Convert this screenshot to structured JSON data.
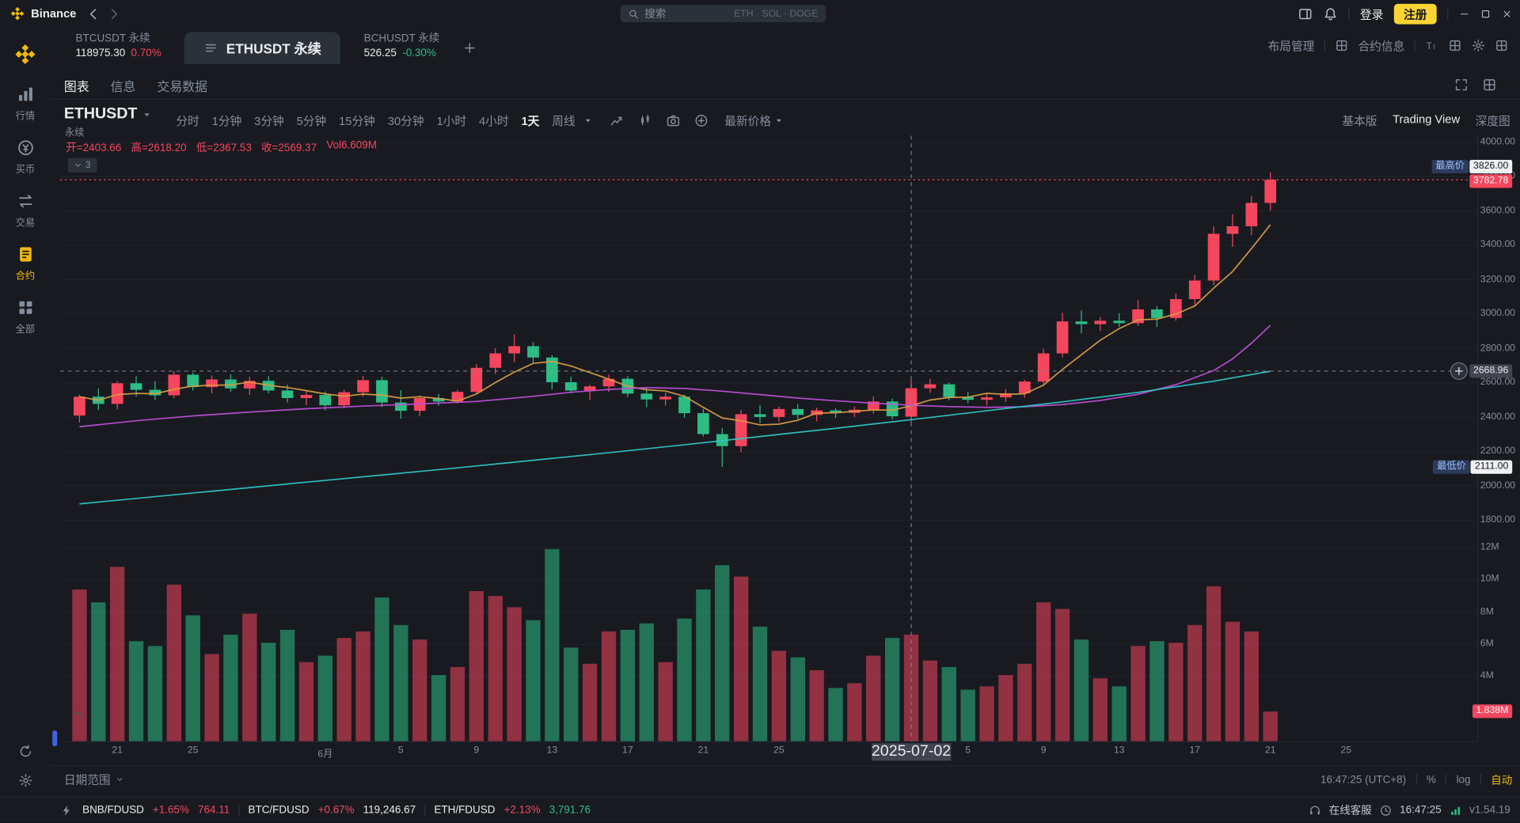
{
  "app": {
    "name": "Binance"
  },
  "titlebar": {
    "search_placeholder": "搜索",
    "search_hot": "ETH · SOL · DOGE",
    "login": "登录",
    "register": "注册"
  },
  "sidebar": {
    "items": [
      {
        "id": "markets",
        "label": "行情"
      },
      {
        "id": "buy",
        "label": "买币"
      },
      {
        "id": "trade",
        "label": "交易"
      },
      {
        "id": "futures",
        "label": "合约",
        "active": true
      },
      {
        "id": "all",
        "label": "全部"
      }
    ]
  },
  "tabstrip": {
    "tabs": [
      {
        "symbol": "BTCUSDT 永续",
        "price": "118975.30",
        "change": "0.70%",
        "change_dir": "up"
      },
      {
        "symbol": "ETHUSDT 永续",
        "active": true
      },
      {
        "symbol": "BCHUSDT 永续",
        "price": "526.25",
        "change": "-0.30%",
        "change_dir": "down"
      }
    ],
    "layout_manage": "布局管理",
    "contract_info": "合约信息"
  },
  "chart_header": {
    "tabs": [
      {
        "label": "图表",
        "active": true
      },
      {
        "label": "信息"
      },
      {
        "label": "交易数据"
      }
    ],
    "symbol": "ETHUSDT",
    "symbol_sub": "永续",
    "timeframes": [
      {
        "label": "分时"
      },
      {
        "label": "1分钟"
      },
      {
        "label": "3分钟"
      },
      {
        "label": "5分钟"
      },
      {
        "label": "15分钟"
      },
      {
        "label": "30分钟"
      },
      {
        "label": "1小时"
      },
      {
        "label": "4小时"
      },
      {
        "label": "1天",
        "active": true
      },
      {
        "label": "周线"
      }
    ],
    "price_mode": "最新价格",
    "view_modes": [
      {
        "label": "基本版"
      },
      {
        "label": "Trading View",
        "active": true
      },
      {
        "label": "深度图"
      }
    ],
    "ohlc": [
      {
        "k": "开",
        "v": "2403.66"
      },
      {
        "k": "高",
        "v": "2618.20"
      },
      {
        "k": "低",
        "v": "2367.53"
      },
      {
        "k": "收",
        "v": "2569.37"
      },
      {
        "k": "Vol",
        "v": "6.609M",
        "eq": false
      }
    ],
    "indicators_badge": "3"
  },
  "chart_data": {
    "type": "candlestick",
    "symbol": "ETHUSDT 永续",
    "interval": "1天",
    "up_color": "#f6465d",
    "down_color": "#2ebd85",
    "price_axis": {
      "max": 4000,
      "min": 1800,
      "ticks": [
        4000,
        3800,
        3600,
        3400,
        3200,
        3000,
        2800,
        2600,
        2400,
        2200,
        2000,
        1800
      ]
    },
    "volume_axis": {
      "scale_max": 12,
      "ticks": [
        12,
        10,
        8,
        6,
        4
      ],
      "suffix": "M"
    },
    "x_ticks": [
      {
        "i": 2,
        "label": "21"
      },
      {
        "i": 6,
        "label": "25"
      },
      {
        "i": 13,
        "label": "6月"
      },
      {
        "i": 17,
        "label": "5"
      },
      {
        "i": 21,
        "label": "9"
      },
      {
        "i": 25,
        "label": "13"
      },
      {
        "i": 29,
        "label": "17"
      },
      {
        "i": 33,
        "label": "21"
      },
      {
        "i": 37,
        "label": "25"
      },
      {
        "i": 47,
        "label": "5"
      },
      {
        "i": 51,
        "label": "9"
      },
      {
        "i": 55,
        "label": "13"
      },
      {
        "i": 59,
        "label": "17"
      },
      {
        "i": 63,
        "label": "21"
      },
      {
        "i": 67,
        "label": "25"
      }
    ],
    "ohlcv": [
      [
        2410,
        2532,
        2370,
        2520,
        9.4
      ],
      [
        2520,
        2568,
        2442,
        2478,
        8.6
      ],
      [
        2478,
        2610,
        2446,
        2598,
        10.8
      ],
      [
        2598,
        2640,
        2520,
        2560,
        6.2
      ],
      [
        2560,
        2610,
        2500,
        2528,
        5.9
      ],
      [
        2528,
        2668,
        2510,
        2648,
        9.7
      ],
      [
        2648,
        2660,
        2556,
        2576,
        7.8
      ],
      [
        2576,
        2644,
        2540,
        2620,
        5.4
      ],
      [
        2620,
        2650,
        2548,
        2568,
        6.6
      ],
      [
        2568,
        2636,
        2530,
        2612,
        7.9
      ],
      [
        2612,
        2640,
        2540,
        2556,
        6.1
      ],
      [
        2556,
        2590,
        2486,
        2512,
        6.9
      ],
      [
        2512,
        2556,
        2470,
        2530,
        4.9
      ],
      [
        2530,
        2550,
        2440,
        2470,
        5.3
      ],
      [
        2470,
        2560,
        2452,
        2546,
        6.4
      ],
      [
        2546,
        2640,
        2520,
        2616,
        6.8
      ],
      [
        2616,
        2636,
        2460,
        2486,
        8.9
      ],
      [
        2486,
        2558,
        2392,
        2438,
        7.2
      ],
      [
        2438,
        2528,
        2408,
        2512,
        6.3
      ],
      [
        2512,
        2536,
        2468,
        2492,
        4.1
      ],
      [
        2492,
        2560,
        2480,
        2548,
        4.6
      ],
      [
        2548,
        2710,
        2536,
        2688,
        9.3
      ],
      [
        2688,
        2802,
        2652,
        2772,
        9.0
      ],
      [
        2772,
        2882,
        2720,
        2814,
        8.3
      ],
      [
        2814,
        2838,
        2718,
        2748,
        7.5
      ],
      [
        2748,
        2762,
        2562,
        2604,
        11.9
      ],
      [
        2604,
        2638,
        2540,
        2556,
        5.8
      ],
      [
        2556,
        2590,
        2500,
        2580,
        4.8
      ],
      [
        2580,
        2648,
        2548,
        2624,
        6.8
      ],
      [
        2624,
        2640,
        2518,
        2538,
        6.9
      ],
      [
        2538,
        2566,
        2460,
        2504,
        7.3
      ],
      [
        2504,
        2544,
        2468,
        2520,
        4.9
      ],
      [
        2520,
        2532,
        2398,
        2424,
        7.6
      ],
      [
        2424,
        2448,
        2288,
        2302,
        9.4
      ],
      [
        2302,
        2338,
        2111,
        2232,
        10.9
      ],
      [
        2232,
        2442,
        2196,
        2418,
        10.2
      ],
      [
        2418,
        2470,
        2366,
        2402,
        7.1
      ],
      [
        2402,
        2462,
        2372,
        2448,
        5.6
      ],
      [
        2448,
        2476,
        2390,
        2414,
        5.2
      ],
      [
        2414,
        2456,
        2376,
        2440,
        4.4
      ],
      [
        2440,
        2452,
        2396,
        2426,
        3.3
      ],
      [
        2426,
        2462,
        2402,
        2444,
        3.6
      ],
      [
        2444,
        2522,
        2420,
        2492,
        5.3
      ],
      [
        2492,
        2508,
        2388,
        2406,
        6.4
      ],
      [
        2403.66,
        2618.2,
        2367.53,
        2569.37,
        6.609
      ],
      [
        2569,
        2624,
        2542,
        2592,
        5.0
      ],
      [
        2592,
        2602,
        2498,
        2518,
        4.6
      ],
      [
        2518,
        2548,
        2482,
        2502,
        3.2
      ],
      [
        2502,
        2538,
        2468,
        2516,
        3.4
      ],
      [
        2516,
        2564,
        2490,
        2540,
        4.1
      ],
      [
        2540,
        2618,
        2514,
        2608,
        4.8
      ],
      [
        2608,
        2798,
        2592,
        2772,
        8.6
      ],
      [
        2772,
        3008,
        2748,
        2958,
        8.2
      ],
      [
        2958,
        3022,
        2888,
        2942,
        6.3
      ],
      [
        2942,
        2984,
        2902,
        2962,
        3.9
      ],
      [
        2962,
        3006,
        2926,
        2948,
        3.4
      ],
      [
        2948,
        3082,
        2932,
        3028,
        5.9
      ],
      [
        3028,
        3048,
        2926,
        2978,
        6.2
      ],
      [
        2978,
        3120,
        2962,
        3088,
        6.1
      ],
      [
        3088,
        3228,
        3052,
        3196,
        7.2
      ],
      [
        3196,
        3512,
        3168,
        3468,
        9.6
      ],
      [
        3468,
        3582,
        3392,
        3512,
        7.4
      ],
      [
        3512,
        3688,
        3460,
        3648,
        6.8
      ],
      [
        3648,
        3826,
        3602,
        3782.78,
        1.838
      ]
    ],
    "ma_overlays": [
      {
        "name": "ma-fast",
        "color": "#d89b45",
        "type": "sma",
        "window": 5
      },
      {
        "name": "ma-mid",
        "color": "#bd4fd6",
        "type": "points",
        "points": [
          [
            0,
            2345
          ],
          [
            3,
            2380
          ],
          [
            6,
            2408
          ],
          [
            9,
            2430
          ],
          [
            12,
            2450
          ],
          [
            15,
            2465
          ],
          [
            18,
            2478
          ],
          [
            21,
            2492
          ],
          [
            24,
            2522
          ],
          [
            26,
            2546
          ],
          [
            28,
            2562
          ],
          [
            30,
            2572
          ],
          [
            32,
            2568
          ],
          [
            34,
            2552
          ],
          [
            36,
            2532
          ],
          [
            38,
            2512
          ],
          [
            40,
            2496
          ],
          [
            42,
            2482
          ],
          [
            44,
            2470
          ],
          [
            46,
            2462
          ],
          [
            48,
            2458
          ],
          [
            50,
            2461
          ],
          [
            52,
            2474
          ],
          [
            54,
            2498
          ],
          [
            56,
            2534
          ],
          [
            58,
            2590
          ],
          [
            60,
            2672
          ],
          [
            61,
            2740
          ],
          [
            62,
            2832
          ],
          [
            63,
            2935
          ]
        ]
      },
      {
        "name": "ma-slow",
        "color": "#2fc4c4",
        "type": "points",
        "points": [
          [
            0,
            1896
          ],
          [
            4,
            1938
          ],
          [
            8,
            1980
          ],
          [
            12,
            2022
          ],
          [
            16,
            2064
          ],
          [
            20,
            2106
          ],
          [
            24,
            2150
          ],
          [
            28,
            2194
          ],
          [
            32,
            2240
          ],
          [
            36,
            2288
          ],
          [
            40,
            2336
          ],
          [
            44,
            2386
          ],
          [
            48,
            2438
          ],
          [
            52,
            2490
          ],
          [
            56,
            2545
          ],
          [
            60,
            2610
          ],
          [
            63,
            2668
          ]
        ]
      }
    ],
    "crosshair": {
      "index": 44,
      "date_label": "2025-07-02",
      "price": 2668.96,
      "price_label": "2668.96"
    },
    "last_price": {
      "value": 3782.78,
      "label": "3782.78"
    },
    "high_marker": {
      "label": "最高价",
      "value": 3826,
      "text": "3826.00"
    },
    "low_marker": {
      "label": "最低价",
      "value": 2111,
      "text": "2111.00"
    },
    "last_volume": {
      "value": 1.838,
      "label": "1.838M"
    }
  },
  "chart_footer": {
    "date_range": "日期范围",
    "clock": "16:47:25 (UTC+8)",
    "percent": "%",
    "log": "log",
    "auto": "自动"
  },
  "statusbar": {
    "pairs": [
      {
        "name": "BNB/FDUSD",
        "change": "+1.65%",
        "price": "764.11",
        "price_color": "up"
      },
      {
        "name": "BTC/FDUSD",
        "change": "+0.67%",
        "price": "119,246.67",
        "price_color": "plain"
      },
      {
        "name": "ETH/FDUSD",
        "change": "+2.13%",
        "price": "3,791.76",
        "price_color": "down"
      }
    ],
    "support": "在线客服",
    "time": "16:47:25",
    "version": "v1.54.19"
  },
  "icons": [
    "binance-logo",
    "back",
    "forward",
    "search",
    "layout-panel",
    "bell",
    "minimize",
    "maximize",
    "close",
    "list",
    "plus",
    "grid",
    "text-size",
    "gear",
    "fullscreen",
    "compare",
    "indicator",
    "camera",
    "add-circle",
    "chevron-down",
    "caret-down",
    "refresh",
    "headset",
    "clock",
    "signal",
    "flash",
    "tradingview-logo",
    "crosshair-add"
  ],
  "colors": {
    "bg": "#181a20",
    "panel": "#2b3139",
    "accent": "#fcd535",
    "up": "#f6465d",
    "down": "#2ebd85",
    "text": "#eaecef",
    "muted": "#848e9c"
  }
}
